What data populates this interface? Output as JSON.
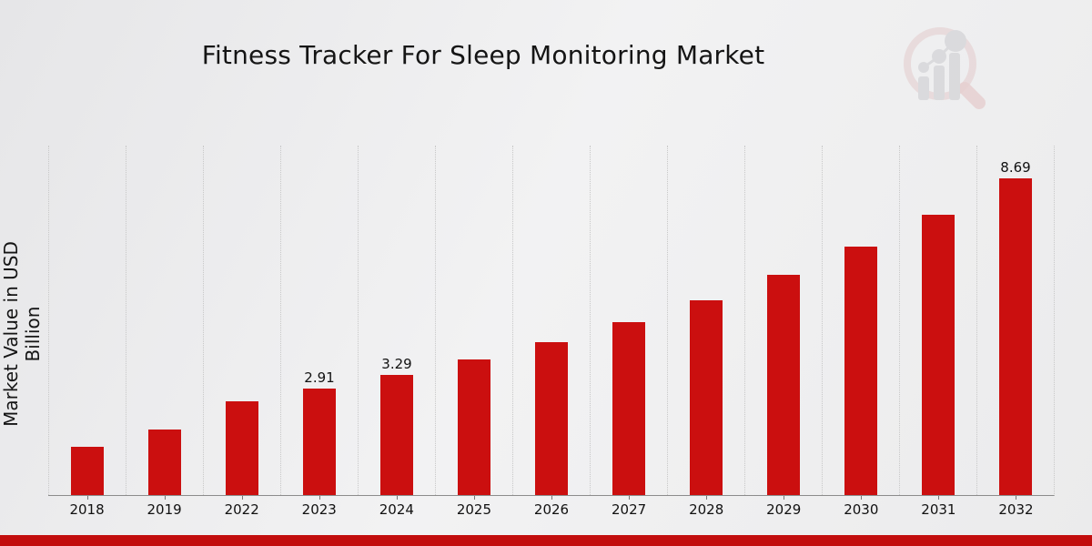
{
  "title": "Fitness Tracker For Sleep Monitoring Market",
  "y_axis_label": "Market Value in USD Billion",
  "colors": {
    "bar": "#cb0f0f",
    "bottom_banner": "#c20d0d",
    "gridline": "#c8c8c8",
    "axis_line": "#8c8c8c",
    "text": "#111111",
    "watermark_ring": "#dcb9b9",
    "watermark_bars": "#c7c7cb"
  },
  "chart_data": {
    "type": "bar",
    "title": "Fitness Tracker For Sleep Monitoring Market",
    "xlabel": "",
    "ylabel": "Market Value in USD Billion",
    "categories": [
      "2018",
      "2019",
      "2022",
      "2023",
      "2024",
      "2025",
      "2026",
      "2027",
      "2028",
      "2029",
      "2030",
      "2031",
      "2032"
    ],
    "values": [
      1.32,
      1.79,
      2.58,
      2.91,
      3.29,
      3.71,
      4.19,
      4.73,
      5.34,
      6.03,
      6.81,
      7.69,
      8.69
    ],
    "bar_labels": [
      "",
      "",
      "",
      "2.91",
      "3.29",
      "",
      "",
      "",
      "",
      "",
      "",
      "",
      "8.69"
    ],
    "ylim": [
      0,
      9.6
    ],
    "grid": "vertical dotted",
    "legend": "none",
    "bar_color": "#cb0f0f"
  }
}
